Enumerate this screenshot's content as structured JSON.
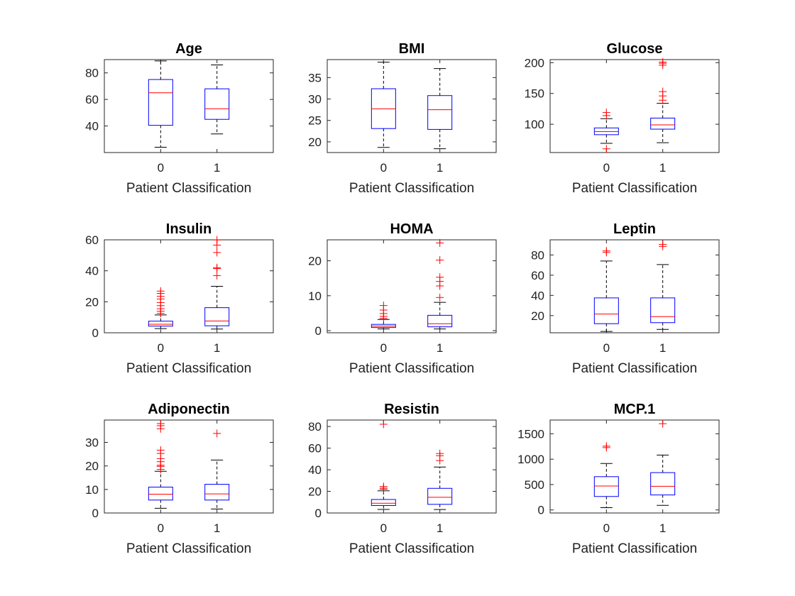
{
  "figure": {
    "background": "#ffffff"
  },
  "style": {
    "box_color": "#0000ff",
    "median_color": "#ff0000",
    "whisker_color": "#000000",
    "outlier_color": "#ff0000",
    "outlier_marker": "+"
  },
  "chart_data": [
    {
      "type": "box",
      "title": "Age",
      "xlabel": "Patient Classification",
      "categories": [
        "0",
        "1"
      ],
      "ylim": [
        20,
        90
      ],
      "yticks": [
        40,
        60,
        80
      ],
      "boxes": [
        {
          "category": "0",
          "whisker_low": 24,
          "q1": 40.5,
          "median": 65,
          "q3": 75,
          "whisker_high": 89,
          "outliers": []
        },
        {
          "category": "1",
          "whisker_low": 34,
          "q1": 45,
          "median": 53,
          "q3": 68,
          "whisker_high": 86,
          "outliers": []
        }
      ]
    },
    {
      "type": "box",
      "title": "BMI",
      "xlabel": "Patient Classification",
      "categories": [
        "0",
        "1"
      ],
      "ylim": [
        17.5,
        39.2
      ],
      "yticks": [
        20,
        25,
        30,
        35
      ],
      "boxes": [
        {
          "category": "0",
          "whisker_low": 18.7,
          "q1": 23.1,
          "median": 27.7,
          "q3": 32.4,
          "whisker_high": 38.6,
          "outliers": []
        },
        {
          "category": "1",
          "whisker_low": 18.4,
          "q1": 22.9,
          "median": 27.5,
          "q3": 30.8,
          "whisker_high": 37.1,
          "outliers": []
        }
      ]
    },
    {
      "type": "box",
      "title": "Glucose",
      "xlabel": "Patient Classification",
      "categories": [
        "0",
        "1"
      ],
      "ylim": [
        54,
        205
      ],
      "yticks": [
        100,
        150,
        200
      ],
      "boxes": [
        {
          "category": "0",
          "whisker_low": 69,
          "q1": 83,
          "median": 88,
          "q3": 94,
          "whisker_high": 109,
          "outliers": [
            60,
            114,
            119
          ]
        },
        {
          "category": "1",
          "whisker_low": 70,
          "q1": 92,
          "median": 99,
          "q3": 110,
          "whisker_high": 134,
          "outliers": [
            139,
            146,
            153,
            196,
            199,
            201
          ]
        }
      ]
    },
    {
      "type": "box",
      "title": "Insulin",
      "xlabel": "Patient Classification",
      "categories": [
        "0",
        "1"
      ],
      "ylim": [
        0,
        60
      ],
      "yticks": [
        0,
        20,
        40,
        60
      ],
      "boxes": [
        {
          "category": "0",
          "whisker_low": 2.7,
          "q1": 4.3,
          "median": 5.5,
          "q3": 7.5,
          "whisker_high": 11.5,
          "outliers": [
            12.5,
            13.9,
            15.5,
            17.5,
            19.5,
            21.8,
            23.5,
            25.4,
            26.9
          ]
        },
        {
          "category": "1",
          "whisker_low": 2.4,
          "q1": 4.5,
          "median": 7.6,
          "q3": 16.2,
          "whisker_high": 30,
          "outliers": [
            36.9,
            41.4,
            42,
            51.8,
            56.6,
            59.9
          ]
        }
      ]
    },
    {
      "type": "box",
      "title": "HOMA",
      "xlabel": "Patient Classification",
      "categories": [
        "0",
        "1"
      ],
      "ylim": [
        -0.6,
        26
      ],
      "yticks": [
        0,
        10,
        20
      ],
      "boxes": [
        {
          "category": "0",
          "whisker_low": 0.5,
          "q1": 0.9,
          "median": 1.3,
          "q3": 1.8,
          "whisker_high": 3.2,
          "outliers": [
            3.5,
            4.1,
            4.9,
            5.9,
            7.2
          ]
        },
        {
          "category": "1",
          "whisker_low": 0.5,
          "q1": 1.1,
          "median": 2.0,
          "q3": 4.4,
          "whisker_high": 8.1,
          "outliers": [
            9.5,
            12.8,
            14.1,
            15.3,
            20.2,
            25.1
          ]
        }
      ]
    },
    {
      "type": "box",
      "title": "Leptin",
      "xlabel": "Patient Classification",
      "categories": [
        "0",
        "1"
      ],
      "ylim": [
        3,
        95
      ],
      "yticks": [
        20,
        40,
        60,
        80
      ],
      "boxes": [
        {
          "category": "0",
          "whisker_low": 4.3,
          "q1": 12,
          "median": 21.5,
          "q3": 37.5,
          "whisker_high": 74,
          "outliers": [
            82.5,
            84
          ]
        },
        {
          "category": "1",
          "whisker_low": 6.3,
          "q1": 13,
          "median": 19,
          "q3": 37.5,
          "whisker_high": 70.5,
          "outliers": [
            88.5,
            90.5
          ]
        }
      ]
    },
    {
      "type": "box",
      "title": "Adiponectin",
      "xlabel": "Patient Classification",
      "categories": [
        "0",
        "1"
      ],
      "ylim": [
        0,
        39.5
      ],
      "yticks": [
        0,
        10,
        20,
        30
      ],
      "boxes": [
        {
          "category": "0",
          "whisker_low": 2,
          "q1": 5.5,
          "median": 8.0,
          "q3": 11,
          "whisker_high": 17.7,
          "outliers": [
            18.5,
            19.8,
            20.3,
            21.8,
            23.1,
            25.3,
            26.7,
            35.8,
            37.1,
            38.0
          ]
        },
        {
          "category": "1",
          "whisker_low": 1.7,
          "q1": 5.5,
          "median": 8.1,
          "q3": 12.2,
          "whisker_high": 22.5,
          "outliers": [
            33.8
          ]
        }
      ]
    },
    {
      "type": "box",
      "title": "Resistin",
      "xlabel": "Patient Classification",
      "categories": [
        "0",
        "1"
      ],
      "ylim": [
        0,
        86
      ],
      "yticks": [
        0,
        20,
        40,
        60,
        80
      ],
      "boxes": [
        {
          "category": "0",
          "whisker_low": 3.3,
          "q1": 6.9,
          "median": 9.0,
          "q3": 12.5,
          "whisker_high": 20.5,
          "outliers": [
            22.0,
            23.0,
            24.5,
            82.1
          ]
        },
        {
          "category": "1",
          "whisker_low": 3.2,
          "q1": 8.0,
          "median": 14.5,
          "q3": 22.8,
          "whisker_high": 42.5,
          "outliers": [
            48.5,
            53.0,
            55.0
          ]
        }
      ]
    },
    {
      "type": "box",
      "title": "MCP.1",
      "xlabel": "Patient Classification",
      "categories": [
        "0",
        "1"
      ],
      "ylim": [
        -60,
        1770
      ],
      "yticks": [
        0,
        500,
        1000,
        1500
      ],
      "boxes": [
        {
          "category": "0",
          "whisker_low": 45,
          "q1": 265,
          "median": 470,
          "q3": 655,
          "whisker_high": 915,
          "outliers": [
            1227,
            1256
          ]
        },
        {
          "category": "1",
          "whisker_low": 90,
          "q1": 295,
          "median": 465,
          "q3": 735,
          "whisker_high": 1080,
          "outliers": [
            1698
          ]
        }
      ]
    }
  ]
}
